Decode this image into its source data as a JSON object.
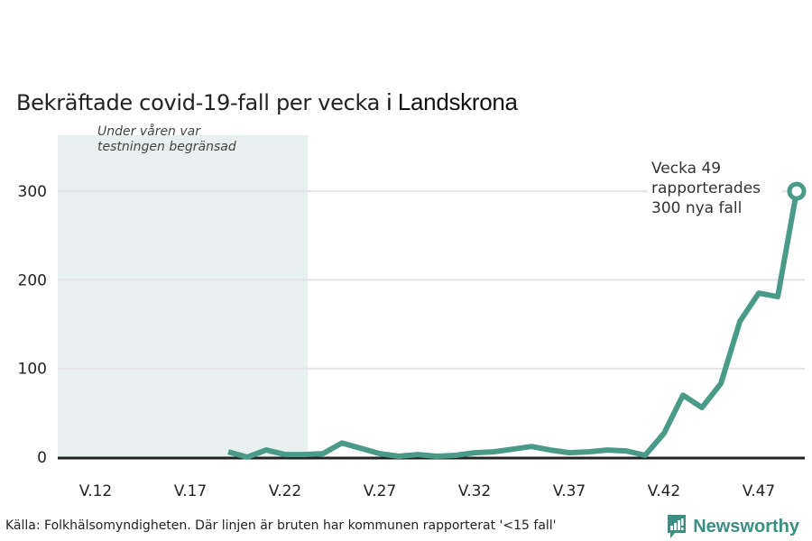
{
  "title": {
    "main": "Bekräftade covid-19-fall per vecka",
    "place": "i Landskrona"
  },
  "colors": {
    "line": "#4a9a88",
    "shade": "#e7f0ee",
    "grid": "#e2e2e8",
    "axis": "#222222",
    "brand": "#3a8f80"
  },
  "shade_note": [
    "Under våren var",
    "testningen begränsad"
  ],
  "annotation": [
    "Vecka 49",
    "rapporterades",
    "300 nya fall"
  ],
  "source": "Källa: Folkhälsomyndigheten. Där linjen är bruten har kommunen rapporterat '<15 fall'",
  "brand": {
    "name": "Newsworthy",
    "icon": "bar-chart-logo-icon"
  },
  "chart_data": {
    "type": "line",
    "title": "Bekräftade covid-19-fall per vecka i Landskrona",
    "xlabel": "",
    "ylabel": "",
    "xlim": [
      10,
      49.5
    ],
    "ylim": [
      0,
      360
    ],
    "grid": true,
    "shaded_region": {
      "from_week": 10,
      "to_week": 23.2,
      "label": "Under våren var testningen begränsad"
    },
    "x_ticks": [
      12,
      17,
      22,
      27,
      32,
      37,
      42,
      47
    ],
    "x_tick_labels": [
      "V.12",
      "V.17",
      "V.22",
      "V.27",
      "V.32",
      "V.37",
      "V.42",
      "V.47"
    ],
    "y_ticks": [
      0,
      100,
      200,
      300
    ],
    "y_tick_labels": [
      "0",
      "100",
      "200",
      "300"
    ],
    "series": [
      {
        "name": "Fall per vecka",
        "x": [
          19,
          20,
          21,
          22,
          23,
          24,
          25,
          26,
          27,
          28,
          29,
          30,
          31,
          32,
          33,
          34,
          35,
          36,
          37,
          38,
          39,
          40,
          41,
          42,
          43,
          44,
          45,
          46,
          47,
          48,
          49
        ],
        "values": [
          6,
          0,
          8,
          3,
          3,
          4,
          16,
          10,
          4,
          1,
          3,
          1,
          2,
          5,
          6,
          9,
          12,
          8,
          5,
          6,
          8,
          7,
          2,
          27,
          70,
          56,
          83,
          153,
          185,
          181,
          300
        ]
      }
    ],
    "highlight": {
      "x": 49,
      "value": 300
    }
  }
}
